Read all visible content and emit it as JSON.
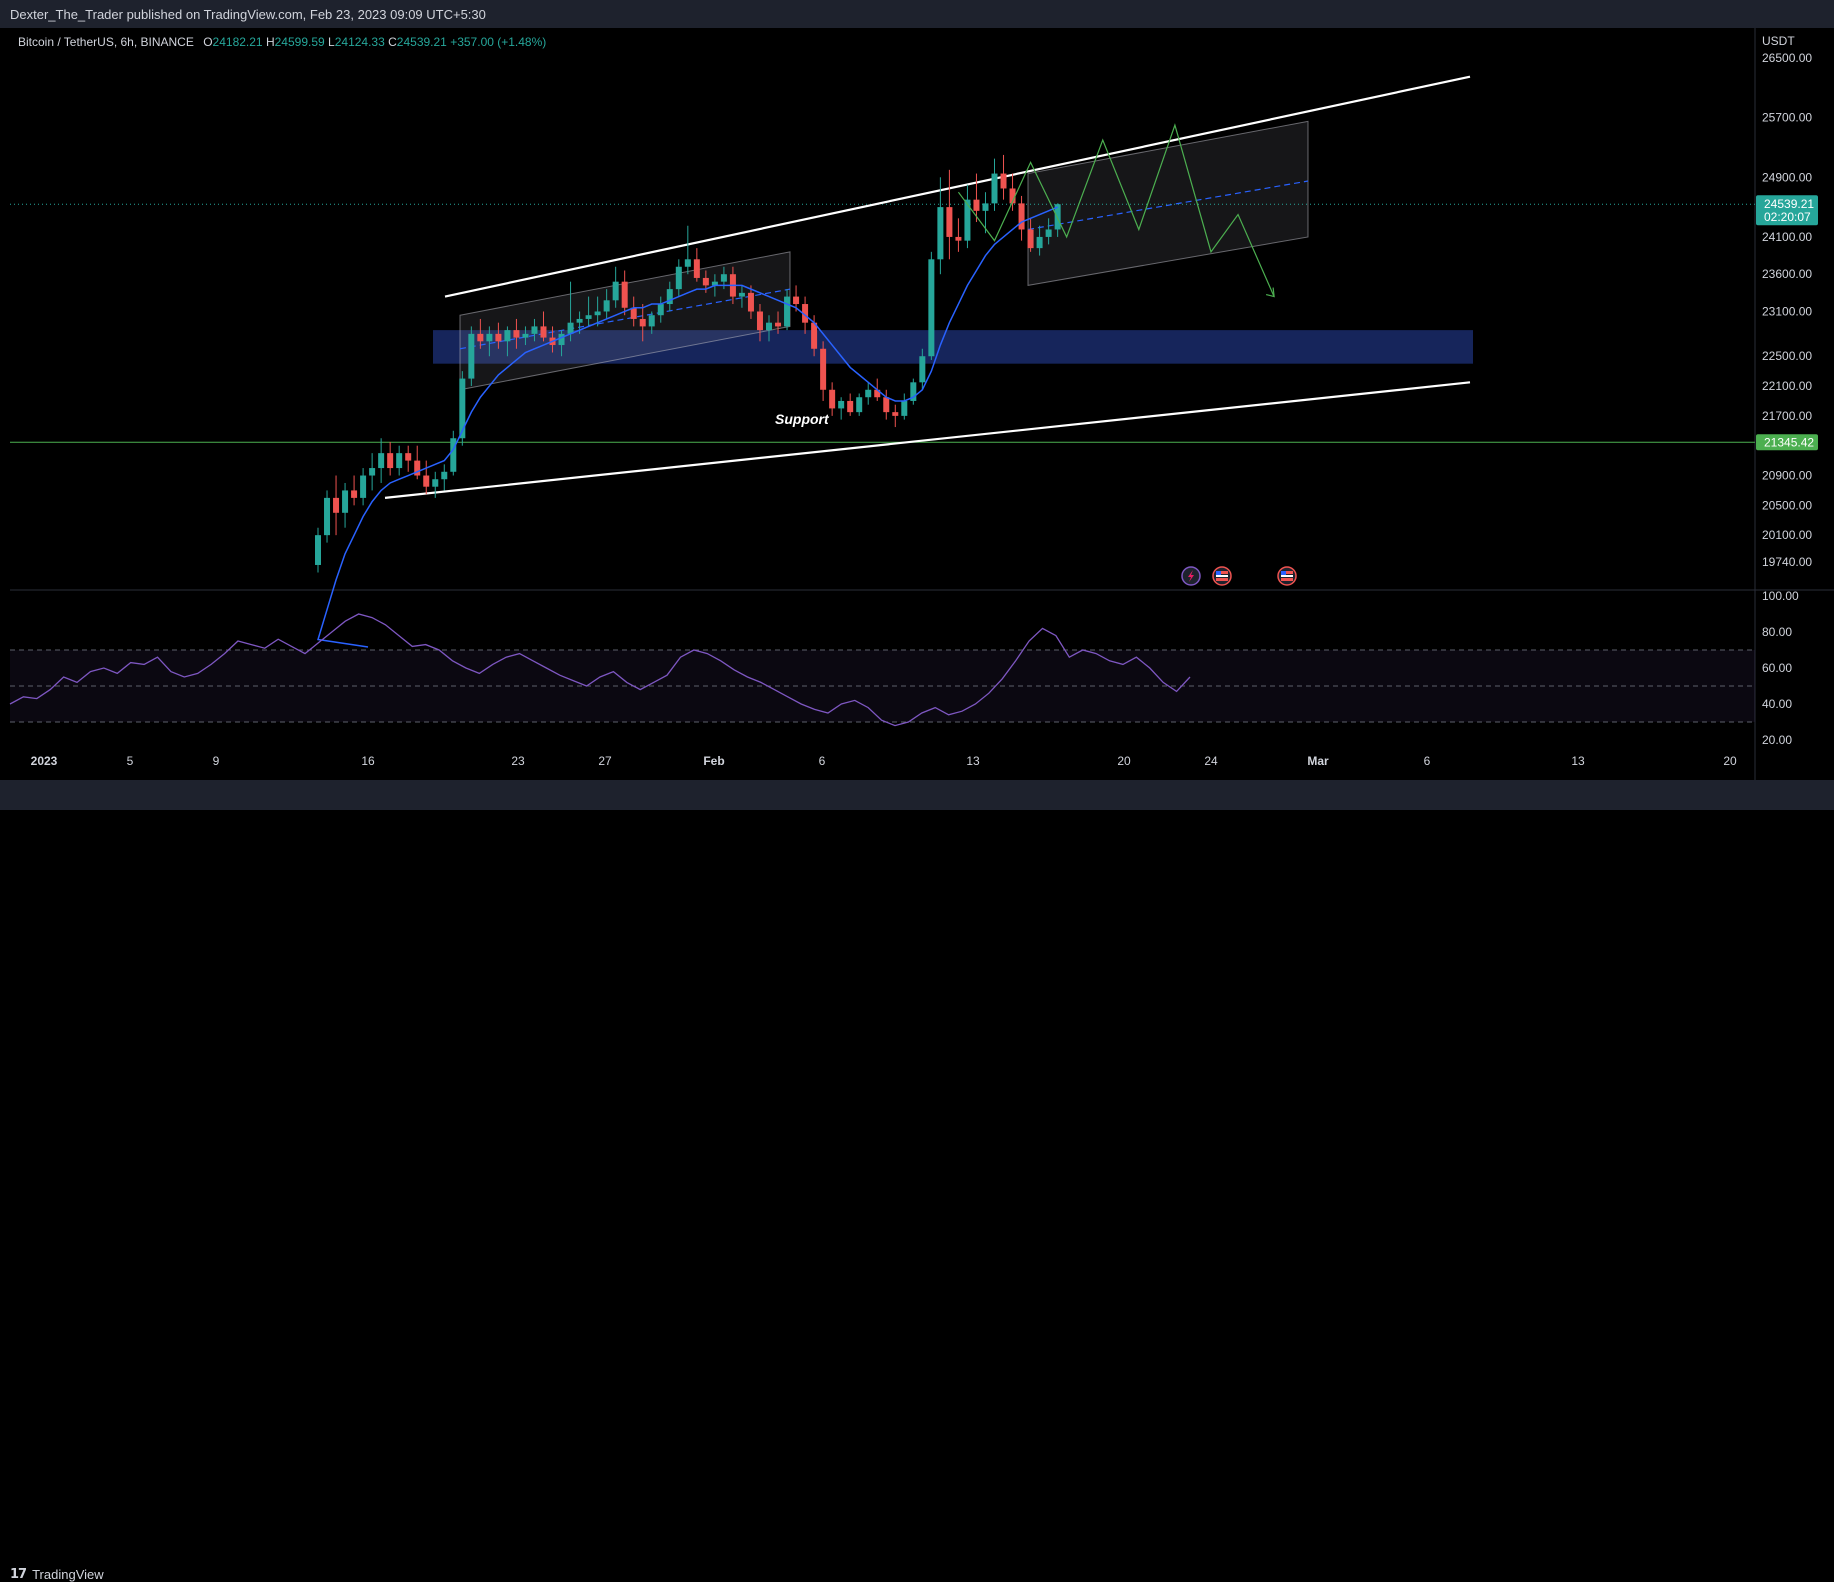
{
  "header": {
    "published_text": "Dexter_The_Trader published on TradingView.com, Feb 23, 2023 09:09 UTC+5:30"
  },
  "legend": {
    "symbol": "Bitcoin / TetherUS, 6h, BINANCE",
    "o_label": "O",
    "o_value": "24182.21",
    "h_label": "H",
    "h_value": "24599.59",
    "l_label": "L",
    "l_value": "24124.33",
    "c_label": "C",
    "c_value": "24539.21",
    "change": "+357.00 (+1.48%)"
  },
  "footer": {
    "brand": "TradingView",
    "logo_icon": "tradingview-logo-icon"
  },
  "colors": {
    "up": "#26a69a",
    "down": "#ef5350",
    "ma": "#2962ff",
    "rsi": "#7e57c2",
    "zone": "#1a2b6b",
    "support_line": "#4caf50",
    "projection": "#4caf50"
  },
  "chart_data": [
    {
      "type": "candlestick",
      "title": "",
      "currency_label": "USDT",
      "timeframe": "6h",
      "y_ticks": [
        26500,
        25700,
        24900,
        24100,
        23600,
        23100,
        22500,
        22100,
        21700,
        20900,
        20500,
        20100,
        19740
      ],
      "y_tick_labels": [
        "26500.00",
        "25700.00",
        "24900.00",
        "24100.00",
        "23600.00",
        "23100.00",
        "22500.00",
        "22100.00",
        "21700.00",
        "20900.00",
        "20500.00",
        "20100.00",
        "19740.00"
      ],
      "x_tick_labels": [
        "2023",
        "5",
        "9",
        "16",
        "23",
        "27",
        "Feb",
        "6",
        "13",
        "20",
        "24",
        "Mar",
        "6",
        "13",
        "20"
      ],
      "price_tags": [
        {
          "value": "24539.21",
          "sub": "02:20:07",
          "color": "#26a69a"
        },
        {
          "value": "21345.42",
          "color": "#4caf50"
        }
      ],
      "annotations": [
        {
          "text": "Support"
        }
      ],
      "series": [
        {
          "type": "candles",
          "ohlc": [
            [
              19700,
              20200,
              19600,
              20100
            ],
            [
              20100,
              20700,
              20000,
              20600
            ],
            [
              20600,
              20900,
              20100,
              20400
            ],
            [
              20400,
              20800,
              20200,
              20700
            ],
            [
              20700,
              20900,
              20500,
              20600
            ],
            [
              20600,
              21000,
              20500,
              20900
            ],
            [
              20900,
              21200,
              20700,
              21000
            ],
            [
              21000,
              21400,
              20800,
              21200
            ],
            [
              21200,
              21350,
              20900,
              21000
            ],
            [
              21000,
              21300,
              20900,
              21200
            ],
            [
              21200,
              21300,
              20950,
              21100
            ],
            [
              21100,
              21300,
              20850,
              20900
            ],
            [
              20900,
              21100,
              20650,
              20750
            ],
            [
              20750,
              20950,
              20600,
              20850
            ],
            [
              20850,
              21050,
              20700,
              20950
            ],
            [
              20950,
              21500,
              20900,
              21400
            ],
            [
              21400,
              22300,
              21300,
              22200
            ],
            [
              22200,
              22900,
              22100,
              22800
            ],
            [
              22800,
              23000,
              22600,
              22700
            ],
            [
              22700,
              22900,
              22500,
              22800
            ],
            [
              22800,
              22950,
              22600,
              22700
            ],
            [
              22700,
              22900,
              22500,
              22850
            ],
            [
              22850,
              23000,
              22600,
              22750
            ],
            [
              22750,
              22900,
              22650,
              22800
            ],
            [
              22800,
              23000,
              22700,
              22900
            ],
            [
              22900,
              23100,
              22700,
              22750
            ],
            [
              22750,
              22900,
              22550,
              22650
            ],
            [
              22650,
              22850,
              22500,
              22800
            ],
            [
              22800,
              23500,
              22700,
              22950
            ],
            [
              22950,
              23100,
              22800,
              23000
            ],
            [
              23000,
              23300,
              22900,
              23050
            ],
            [
              23050,
              23300,
              22900,
              23100
            ],
            [
              23100,
              23400,
              23000,
              23250
            ],
            [
              23250,
              23700,
              23150,
              23500
            ],
            [
              23500,
              23650,
              23050,
              23150
            ],
            [
              23150,
              23300,
              22900,
              23000
            ],
            [
              23000,
              23200,
              22700,
              22900
            ],
            [
              22900,
              23100,
              22800,
              23050
            ],
            [
              23050,
              23300,
              22950,
              23200
            ],
            [
              23200,
              23500,
              23100,
              23400
            ],
            [
              23400,
              23800,
              23300,
              23700
            ],
            [
              23700,
              24250,
              23600,
              23800
            ],
            [
              23800,
              23950,
              23500,
              23550
            ],
            [
              23550,
              23650,
              23350,
              23450
            ],
            [
              23450,
              23600,
              23300,
              23500
            ],
            [
              23500,
              23700,
              23400,
              23600
            ],
            [
              23600,
              23700,
              23200,
              23300
            ],
            [
              23300,
              23450,
              23150,
              23350
            ],
            [
              23350,
              23450,
              23000,
              23100
            ],
            [
              23100,
              23200,
              22700,
              22850
            ],
            [
              22850,
              23050,
              22700,
              22950
            ],
            [
              22950,
              23100,
              22800,
              22900
            ],
            [
              22900,
              23400,
              22850,
              23300
            ],
            [
              23300,
              23450,
              23100,
              23200
            ],
            [
              23200,
              23300,
              22800,
              22950
            ],
            [
              22950,
              23050,
              22500,
              22600
            ],
            [
              22600,
              22700,
              21900,
              22050
            ],
            [
              22050,
              22150,
              21700,
              21800
            ],
            [
              21800,
              21950,
              21650,
              21900
            ],
            [
              21900,
              22000,
              21700,
              21750
            ],
            [
              21750,
              22000,
              21700,
              21950
            ],
            [
              21950,
              22150,
              21850,
              22050
            ],
            [
              22050,
              22200,
              21900,
              21950
            ],
            [
              21950,
              22050,
              21650,
              21750
            ],
            [
              21750,
              21850,
              21550,
              21700
            ],
            [
              21700,
              22000,
              21650,
              21900
            ],
            [
              21900,
              22200,
              21850,
              22150
            ],
            [
              22150,
              22600,
              22050,
              22500
            ],
            [
              22500,
              23900,
              22450,
              23800
            ],
            [
              23800,
              24900,
              23600,
              24500
            ],
            [
              24500,
              25000,
              23800,
              24100
            ],
            [
              24100,
              24350,
              23900,
              24050
            ],
            [
              24050,
              24800,
              23950,
              24600
            ],
            [
              24600,
              24950,
              24300,
              24450
            ],
            [
              24450,
              24700,
              24150,
              24550
            ],
            [
              24550,
              25150,
              24450,
              24950
            ],
            [
              24950,
              25200,
              24600,
              24750
            ],
            [
              24750,
              24950,
              24450,
              24550
            ],
            [
              24550,
              24650,
              24050,
              24200
            ],
            [
              24200,
              24350,
              23900,
              23950
            ],
            [
              23950,
              24250,
              23850,
              24100
            ],
            [
              24100,
              24350,
              24000,
              24200
            ],
            [
              24200,
              24550,
              24100,
              24539
            ]
          ]
        },
        {
          "type": "ma_line",
          "values": [
            18700,
            19100,
            19500,
            19850,
            20100,
            20350,
            20550,
            20700,
            20800,
            20850,
            20900,
            20950,
            21000,
            21050,
            21100,
            21250,
            21500,
            21750,
            21950,
            22100,
            22250,
            22350,
            22450,
            22550,
            22600,
            22650,
            22700,
            22750,
            22800,
            22850,
            22900,
            22950,
            23000,
            23050,
            23100,
            23150,
            23150,
            23200,
            23200,
            23250,
            23300,
            23350,
            23400,
            23400,
            23450,
            23450,
            23450,
            23450,
            23400,
            23350,
            23300,
            23250,
            23200,
            23150,
            23050,
            22950,
            22800,
            22650,
            22500,
            22350,
            22250,
            22150,
            22050,
            21950,
            21900,
            21900,
            21950,
            22050,
            22300,
            22650,
            22950,
            23200,
            23450,
            23650,
            23850,
            24000,
            24100,
            24200,
            24300,
            24350,
            24400,
            24450,
            24500
          ]
        },
        {
          "type": "projection_zigzag",
          "points": [
            [
              71,
              24700
            ],
            [
              75,
              24050
            ],
            [
              79,
              25100
            ],
            [
              83,
              24100
            ],
            [
              87,
              25400
            ],
            [
              91,
              24200
            ],
            [
              95,
              25600
            ],
            [
              99,
              23900
            ],
            [
              102,
              24400
            ],
            [
              106,
              23300
            ]
          ]
        }
      ],
      "zone": {
        "from_price": 22400,
        "to_price": 22850
      },
      "channel_upper": [
        [
          20,
          23300
        ],
        [
          128,
          26250
        ]
      ],
      "channel_lower": [
        [
          18,
          20600
        ],
        [
          128,
          22150
        ]
      ],
      "support_level": 21345.42,
      "current_price": 24539.21
    },
    {
      "type": "line",
      "title": "",
      "y_ticks": [
        100,
        80,
        60,
        40,
        20
      ],
      "y_tick_labels": [
        "100.00",
        "80.00",
        "60.00",
        "40.00",
        "20.00"
      ],
      "bands": [
        70,
        50,
        30
      ],
      "series": [
        {
          "type": "rsi",
          "values": [
            40,
            44,
            43,
            48,
            55,
            52,
            58,
            60,
            57,
            63,
            62,
            66,
            58,
            55,
            57,
            62,
            68,
            75,
            73,
            71,
            76,
            72,
            68,
            74,
            80,
            86,
            90,
            88,
            84,
            78,
            72,
            73,
            70,
            64,
            60,
            57,
            62,
            66,
            68,
            64,
            60,
            56,
            53,
            50,
            55,
            58,
            52,
            48,
            52,
            56,
            66,
            70,
            68,
            64,
            59,
            55,
            52,
            48,
            44,
            40,
            37,
            35,
            40,
            42,
            38,
            31,
            28,
            30,
            35,
            38,
            34,
            36,
            40,
            46,
            54,
            64,
            75,
            82,
            78,
            66,
            70,
            68,
            64,
            62,
            66,
            60,
            52,
            47,
            55
          ]
        }
      ]
    }
  ]
}
